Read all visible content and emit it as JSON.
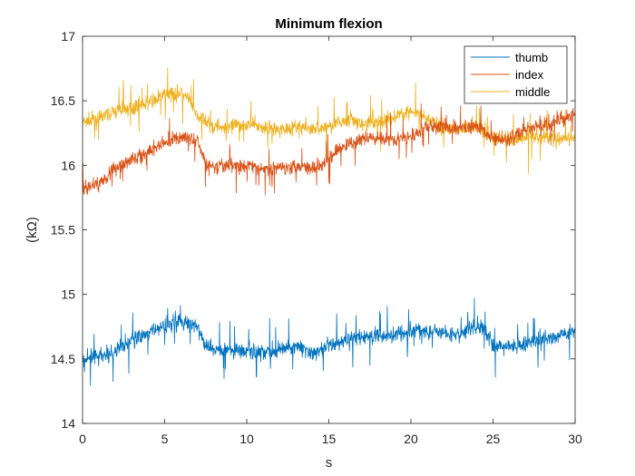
{
  "chart_data": {
    "type": "line",
    "title": "Minimum flexion",
    "xlabel": "s",
    "ylabel": "(kΩ)",
    "xlim": [
      0,
      30
    ],
    "ylim": [
      14,
      17
    ],
    "xticks": [
      0,
      5,
      10,
      15,
      20,
      25,
      30
    ],
    "yticks": [
      14,
      14.5,
      15,
      15.5,
      16,
      16.5,
      17
    ],
    "grid": false,
    "legend_position": "top-right",
    "series": [
      {
        "name": "thumb",
        "color": "#0072BD",
        "noise": 0.1,
        "x": [
          0,
          1,
          2,
          3,
          4,
          5,
          5.5,
          6,
          6.5,
          7,
          7.5,
          8,
          9,
          10,
          11,
          12,
          13,
          14,
          15,
          16,
          17,
          18,
          19,
          20,
          21,
          22,
          23,
          24,
          24.5,
          25,
          26,
          27,
          28,
          29,
          30
        ],
        "y": [
          14.5,
          14.52,
          14.55,
          14.65,
          14.7,
          14.76,
          14.8,
          14.8,
          14.77,
          14.75,
          14.6,
          14.57,
          14.58,
          14.56,
          14.55,
          14.57,
          14.6,
          14.55,
          14.6,
          14.64,
          14.67,
          14.68,
          14.7,
          14.73,
          14.72,
          14.7,
          14.68,
          14.76,
          14.72,
          14.6,
          14.6,
          14.62,
          14.64,
          14.68,
          14.72
        ]
      },
      {
        "name": "index",
        "color": "#D95319",
        "noise": 0.09,
        "x": [
          0,
          1,
          2,
          3,
          4,
          5,
          6,
          7,
          7.5,
          8,
          9,
          10,
          11,
          12,
          13,
          14,
          15,
          16,
          17,
          18,
          19,
          20,
          21,
          22,
          23,
          24,
          25,
          26,
          27,
          28,
          29,
          30
        ],
        "y": [
          15.82,
          15.86,
          15.98,
          16.05,
          16.1,
          16.18,
          16.22,
          16.2,
          16.0,
          15.98,
          16.0,
          16.0,
          15.97,
          15.98,
          16.0,
          15.98,
          16.05,
          16.15,
          16.2,
          16.22,
          16.2,
          16.22,
          16.3,
          16.3,
          16.28,
          16.32,
          16.2,
          16.2,
          16.28,
          16.3,
          16.35,
          16.4
        ]
      },
      {
        "name": "middle",
        "color": "#EDB120",
        "noise": 0.09,
        "x": [
          0,
          1,
          2,
          3,
          4,
          5,
          6,
          6.5,
          7,
          8,
          9,
          10,
          11,
          12,
          13,
          14,
          15,
          16,
          17,
          18,
          19,
          20,
          21,
          22,
          23,
          24,
          25,
          26,
          27,
          28,
          29,
          30
        ],
        "y": [
          16.33,
          16.36,
          16.42,
          16.45,
          16.48,
          16.55,
          16.56,
          16.5,
          16.38,
          16.3,
          16.3,
          16.32,
          16.3,
          16.28,
          16.3,
          16.28,
          16.3,
          16.35,
          16.32,
          16.33,
          16.38,
          16.42,
          16.35,
          16.3,
          16.28,
          16.3,
          16.22,
          16.2,
          16.22,
          16.22,
          16.2,
          16.2
        ]
      }
    ]
  }
}
